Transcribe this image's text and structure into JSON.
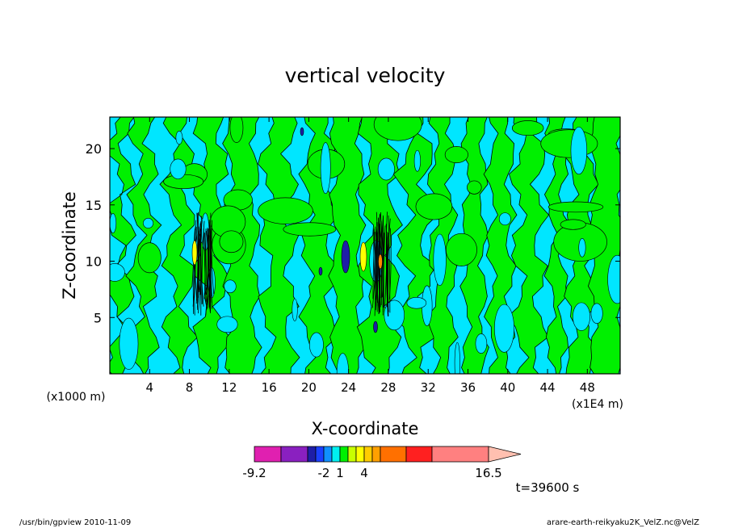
{
  "chart_data": {
    "type": "heatmap",
    "title": "vertical velocity",
    "xlabel": "X-coordinate",
    "ylabel": "Z-coordinate",
    "x_ticks": [
      "4",
      "8",
      "12",
      "16",
      "20",
      "24",
      "28",
      "32",
      "36",
      "40",
      "44",
      "48"
    ],
    "y_ticks": [
      "5",
      "10",
      "15",
      "20"
    ],
    "xlim": [
      0,
      51.3
    ],
    "ylim": [
      0,
      22.8
    ],
    "x_unit": "(x1E4 m)",
    "y_unit": "(x1000 m)",
    "time_label": "t=39600 s",
    "colorbar": {
      "tick_labels": [
        "-9.2",
        "-2",
        "1",
        "4",
        "16.5"
      ],
      "colors": [
        "#e020b0",
        "#8a20c0",
        "#1e1ea8",
        "#1a40ff",
        "#1090ff",
        "#00f0f0",
        "#00f000",
        "#c8ff00",
        "#ffff00",
        "#ffcc00",
        "#ffa000",
        "#ff7000",
        "#ff2020",
        "#ff8080",
        "#ffc0b0"
      ]
    },
    "field_colors": {
      "background": "#00e6ff",
      "positive": "#00f000",
      "strong_negative": "#1e1ea8",
      "weak_positive": "#ffff00",
      "strong_positive": "#ff8800",
      "contour": "#000000"
    }
  },
  "footer": {
    "left": "/usr/bin/gpview   2010-11-09",
    "right": "arare-earth-reikyaku2K_VelZ.nc@VelZ"
  }
}
